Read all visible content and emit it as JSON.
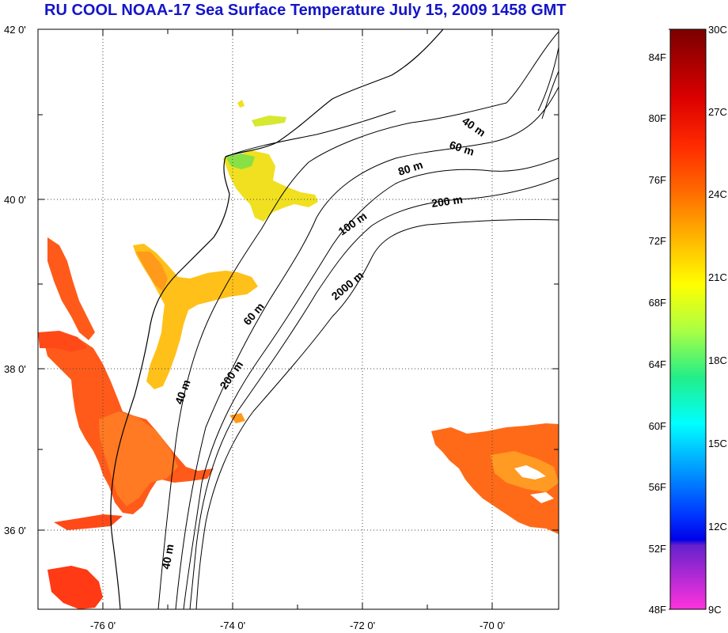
{
  "title": "RU COOL  NOAA-17 Sea Surface Temperature July 15, 2009 1458 GMT",
  "map": {
    "lat_labels": [
      "42 0'",
      "40 0'",
      "38 0'",
      "36 0'"
    ],
    "lon_labels": [
      "-76 0'",
      "-74 0'",
      "-72 0'",
      "-70 0'"
    ],
    "depth_labels": [
      "40 m",
      "60 m",
      "80 m",
      "200 m",
      "100 m",
      "2000 m",
      "60 m",
      "200 m",
      "40 m",
      "40 m"
    ]
  },
  "colorbar": {
    "fahrenheit_labels": [
      "84F",
      "80F",
      "76F",
      "72F",
      "68F",
      "64F",
      "60F",
      "56F",
      "52F",
      "48F"
    ],
    "celsius_labels": [
      "30C",
      "27C",
      "24C",
      "21C",
      "18C",
      "15C",
      "12C",
      "9C"
    ],
    "colors": [
      "#8b0000",
      "#e00000",
      "#ff3300",
      "#ff7a00",
      "#ffdd00",
      "#ccff33",
      "#33ee66",
      "#00e0e0",
      "#0099ff",
      "#0022ff",
      "#0000e0",
      "#7722dd",
      "#ff33dd"
    ]
  }
}
